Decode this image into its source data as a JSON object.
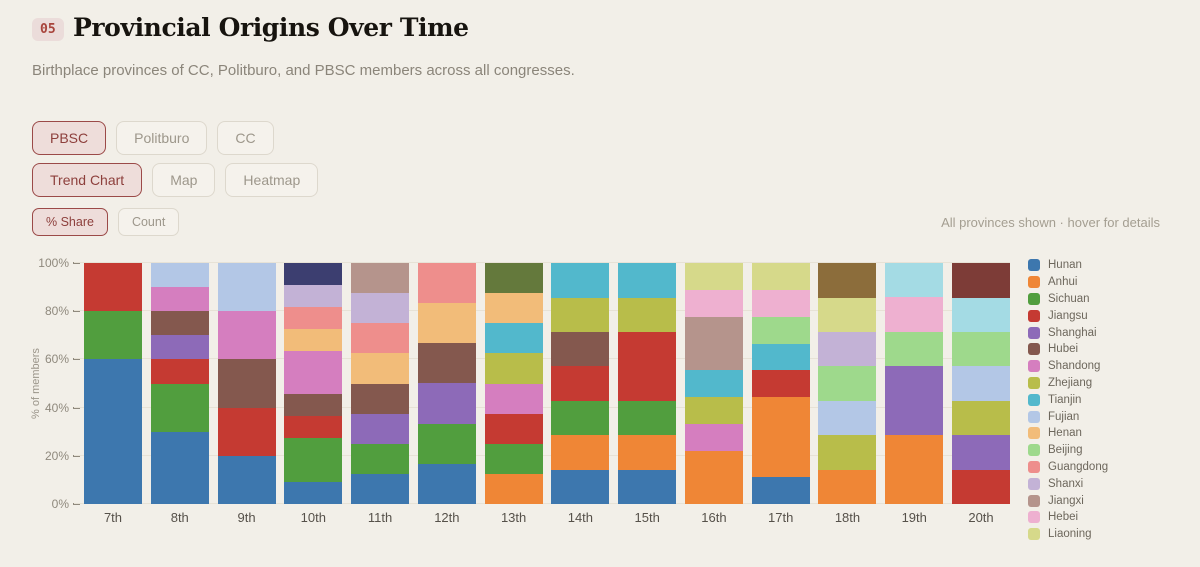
{
  "header": {
    "badge": "05",
    "title": "Provincial Origins Over Time"
  },
  "subtitle": "Birthplace provinces of CC, Politburo, and PBSC members across all congresses.",
  "toolbar": {
    "groups": [
      {
        "name": "body-filter",
        "buttons": [
          {
            "label": "PBSC",
            "active": true
          },
          {
            "label": "Politburo",
            "active": false
          },
          {
            "label": "CC",
            "active": false
          }
        ]
      },
      {
        "name": "view-mode",
        "buttons": [
          {
            "label": "Trend Chart",
            "active": true
          },
          {
            "label": "Map",
            "active": false
          },
          {
            "label": "Heatmap",
            "active": false
          }
        ]
      },
      {
        "name": "value-mode",
        "buttons": [
          {
            "label": "% Share",
            "active": true
          },
          {
            "label": "Count",
            "active": false
          }
        ]
      }
    ]
  },
  "note": "All provinces shown · hover for details",
  "chart_data": {
    "type": "bar",
    "stacked": true,
    "normalized": "percent",
    "title": "",
    "xlabel": "",
    "ylabel": "% of members",
    "ylim": [
      0,
      100
    ],
    "grid": true,
    "yticks": [
      "0%",
      "20%",
      "40%",
      "60%",
      "80%",
      "100%"
    ],
    "categories": [
      "7th",
      "8th",
      "9th",
      "10th",
      "11th",
      "12th",
      "13th",
      "14th",
      "15th",
      "16th",
      "17th",
      "18th",
      "19th",
      "20th"
    ],
    "colors": {
      "Hunan": "#3d77ae",
      "Anhui": "#ef8636",
      "Sichuan": "#519e3e",
      "Jiangsu": "#c53a32",
      "Shanghai": "#8d6ab8",
      "Hubei": "#84584e",
      "Shandong": "#d57ebf",
      "Zhejiang": "#b8bd4a",
      "Tianjin": "#52b8cc",
      "Fujian": "#b3c7e6",
      "Henan": "#f2bc79",
      "Beijing": "#9ed98c",
      "Guangdong": "#ee8e8c",
      "Shanxi": "#c3b2d6",
      "Jiangxi": "#b5948c",
      "Hebei": "#eeb0d0",
      "Liaoning": "#d6d98a",
      "unlisted-navy": "#3c3e70",
      "unlisted-olive": "#64793c",
      "unlisted-khaki": "#8c6d3b",
      "unlisted-palecyan": "#a4dbe4",
      "unlisted-maroon": "#7d3c37"
    },
    "bars": [
      {
        "congress": "7th",
        "segments": [
          [
            "Hunan",
            60
          ],
          [
            "Sichuan",
            20
          ],
          [
            "Jiangsu",
            20
          ]
        ]
      },
      {
        "congress": "8th",
        "segments": [
          [
            "Hunan",
            30
          ],
          [
            "Sichuan",
            20
          ],
          [
            "Jiangsu",
            10
          ],
          [
            "Shanghai",
            10
          ],
          [
            "Hubei",
            10
          ],
          [
            "Shandong",
            10
          ],
          [
            "Fujian",
            10
          ]
        ]
      },
      {
        "congress": "9th",
        "segments": [
          [
            "Hunan",
            20
          ],
          [
            "Jiangsu",
            20
          ],
          [
            "Hubei",
            20
          ],
          [
            "Shandong",
            20
          ],
          [
            "Fujian",
            20
          ]
        ]
      },
      {
        "congress": "10th",
        "segments": [
          [
            "Hunan",
            9.1
          ],
          [
            "Sichuan",
            18.2
          ],
          [
            "Jiangsu",
            9.1
          ],
          [
            "Hubei",
            9.1
          ],
          [
            "Shandong",
            18.2
          ],
          [
            "Henan",
            9.1
          ],
          [
            "Guangdong",
            9.1
          ],
          [
            "Shanxi",
            9.1
          ],
          [
            "unlisted-navy",
            9.0
          ]
        ]
      },
      {
        "congress": "11th",
        "segments": [
          [
            "Hunan",
            12.5
          ],
          [
            "Sichuan",
            12.5
          ],
          [
            "Shanghai",
            12.5
          ],
          [
            "Hubei",
            12.5
          ],
          [
            "Henan",
            12.5
          ],
          [
            "Guangdong",
            12.5
          ],
          [
            "Shanxi",
            12.5
          ],
          [
            "Jiangxi",
            12.5
          ]
        ]
      },
      {
        "congress": "12th",
        "segments": [
          [
            "Hunan",
            16.7
          ],
          [
            "Sichuan",
            16.7
          ],
          [
            "Shanghai",
            16.7
          ],
          [
            "Hubei",
            16.7
          ],
          [
            "Henan",
            16.6
          ],
          [
            "Guangdong",
            16.6
          ]
        ]
      },
      {
        "congress": "13th",
        "segments": [
          [
            "Anhui",
            12.5
          ],
          [
            "Sichuan",
            12.5
          ],
          [
            "Jiangsu",
            12.5
          ],
          [
            "Shandong",
            12.5
          ],
          [
            "Zhejiang",
            12.5
          ],
          [
            "Tianjin",
            12.5
          ],
          [
            "Henan",
            12.5
          ],
          [
            "unlisted-olive",
            12.5
          ]
        ]
      },
      {
        "congress": "14th",
        "segments": [
          [
            "Hunan",
            14.3
          ],
          [
            "Anhui",
            14.3
          ],
          [
            "Sichuan",
            14.3
          ],
          [
            "Jiangsu",
            14.3
          ],
          [
            "Hubei",
            14.3
          ],
          [
            "Zhejiang",
            14.2
          ],
          [
            "Tianjin",
            14.3
          ]
        ]
      },
      {
        "congress": "15th",
        "segments": [
          [
            "Hunan",
            14.3
          ],
          [
            "Anhui",
            14.3
          ],
          [
            "Sichuan",
            14.3
          ],
          [
            "Jiangsu",
            28.6
          ],
          [
            "Zhejiang",
            14.2
          ],
          [
            "Tianjin",
            14.3
          ]
        ]
      },
      {
        "congress": "16th",
        "segments": [
          [
            "Anhui",
            22.2
          ],
          [
            "Shandong",
            11.1
          ],
          [
            "Zhejiang",
            11.1
          ],
          [
            "Tianjin",
            11.1
          ],
          [
            "Jiangxi",
            22.2
          ],
          [
            "Hebei",
            11.1
          ],
          [
            "Liaoning",
            11.2
          ]
        ]
      },
      {
        "congress": "17th",
        "segments": [
          [
            "Hunan",
            11.1
          ],
          [
            "Anhui",
            33.3
          ],
          [
            "Jiangsu",
            11.1
          ],
          [
            "Tianjin",
            11.1
          ],
          [
            "Beijing",
            11.1
          ],
          [
            "Hebei",
            11.1
          ],
          [
            "Liaoning",
            11.2
          ]
        ]
      },
      {
        "congress": "18th",
        "segments": [
          [
            "Anhui",
            14.3
          ],
          [
            "Zhejiang",
            14.3
          ],
          [
            "Fujian",
            14.3
          ],
          [
            "Beijing",
            14.3
          ],
          [
            "Shanxi",
            14.3
          ],
          [
            "Liaoning",
            14.2
          ],
          [
            "unlisted-khaki",
            14.3
          ]
        ]
      },
      {
        "congress": "19th",
        "segments": [
          [
            "Anhui",
            28.6
          ],
          [
            "Shanghai",
            28.6
          ],
          [
            "Beijing",
            14.3
          ],
          [
            "Hebei",
            14.2
          ],
          [
            "unlisted-palecyan",
            14.3
          ]
        ]
      },
      {
        "congress": "20th",
        "segments": [
          [
            "Jiangsu",
            14.3
          ],
          [
            "Shanghai",
            14.3
          ],
          [
            "Zhejiang",
            14.3
          ],
          [
            "Fujian",
            14.3
          ],
          [
            "Beijing",
            14.3
          ],
          [
            "unlisted-palecyan",
            14.2
          ],
          [
            "unlisted-maroon",
            14.3
          ]
        ]
      }
    ]
  },
  "legend": {
    "items": [
      {
        "label": "Hunan",
        "color": "#3d77ae"
      },
      {
        "label": "Anhui",
        "color": "#ef8636"
      },
      {
        "label": "Sichuan",
        "color": "#519e3e"
      },
      {
        "label": "Jiangsu",
        "color": "#c53a32"
      },
      {
        "label": "Shanghai",
        "color": "#8d6ab8"
      },
      {
        "label": "Hubei",
        "color": "#84584e"
      },
      {
        "label": "Shandong",
        "color": "#d57ebf"
      },
      {
        "label": "Zhejiang",
        "color": "#b8bd4a"
      },
      {
        "label": "Tianjin",
        "color": "#52b8cc"
      },
      {
        "label": "Fujian",
        "color": "#b3c7e6"
      },
      {
        "label": "Henan",
        "color": "#f2bc79"
      },
      {
        "label": "Beijing",
        "color": "#9ed98c"
      },
      {
        "label": "Guangdong",
        "color": "#ee8e8c"
      },
      {
        "label": "Shanxi",
        "color": "#c3b2d6"
      },
      {
        "label": "Jiangxi",
        "color": "#b5948c"
      },
      {
        "label": "Hebei",
        "color": "#eeb0d0"
      },
      {
        "label": "Liaoning",
        "color": "#d6d98a"
      }
    ]
  },
  "colors": {
    "accent": "#9b4a48",
    "background": "#f2efe8"
  }
}
